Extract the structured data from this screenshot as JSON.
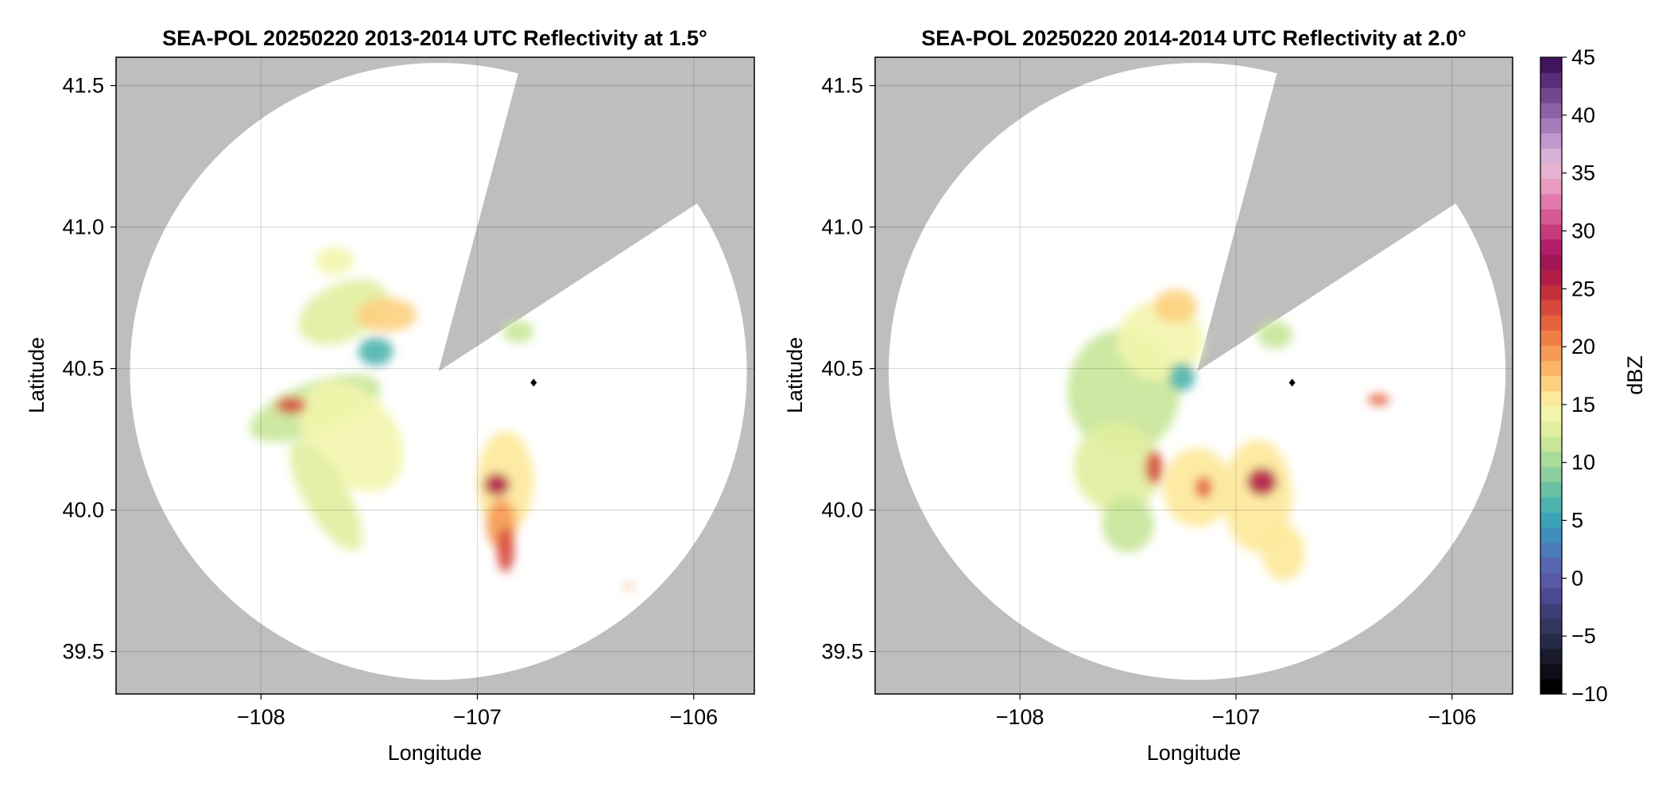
{
  "chart_data": [
    {
      "type": "heatmap",
      "title": "SEA-POL 20250220 2013-2014 UTC Reflectivity at 1.5°",
      "xlabel": "Longitude",
      "ylabel": "Latitude",
      "xlim": [
        -108.67,
        -105.72
      ],
      "ylim": [
        39.35,
        41.6
      ],
      "xticks": [
        -108,
        -107,
        -106
      ],
      "xtick_labels": [
        "−108",
        "−107",
        "−106"
      ],
      "yticks": [
        39.5,
        40.0,
        40.5,
        41.0,
        41.5
      ],
      "ytick_labels": [
        "39.5",
        "40.0",
        "40.5",
        "41.0",
        "41.5"
      ],
      "grid": true,
      "radar_center": [
        -107.18,
        40.49
      ],
      "radar_range_deg_lat": 1.09,
      "blocked_sector_azimuth_deg": [
        15,
        57
      ],
      "marker": {
        "lon": -106.74,
        "lat": 40.45,
        "symbol": "diamond"
      },
      "reflectivity_cells": [
        {
          "lon": -107.75,
          "lat": 40.36,
          "rlon": 0.32,
          "rlat": 0.09,
          "rot": -20,
          "dbz": 12
        },
        {
          "lon": -107.58,
          "lat": 40.26,
          "rlon": 0.2,
          "rlat": 0.22,
          "rot": -40,
          "dbz": 14
        },
        {
          "lon": -107.7,
          "lat": 40.05,
          "rlon": 0.1,
          "rlat": 0.22,
          "rot": -30,
          "dbz": 13
        },
        {
          "lon": -107.86,
          "lat": 40.37,
          "rlon": 0.07,
          "rlat": 0.03,
          "rot": 0,
          "dbz": 23
        },
        {
          "lon": -107.62,
          "lat": 40.7,
          "rlon": 0.22,
          "rlat": 0.1,
          "rot": -25,
          "dbz": 13
        },
        {
          "lon": -107.42,
          "lat": 40.69,
          "rlon": 0.14,
          "rlat": 0.06,
          "rot": 0,
          "dbz": 17
        },
        {
          "lon": -107.47,
          "lat": 40.56,
          "rlon": 0.08,
          "rlat": 0.05,
          "rot": 0,
          "dbz": 7
        },
        {
          "lon": -107.66,
          "lat": 40.88,
          "rlon": 0.09,
          "rlat": 0.05,
          "rot": 0,
          "dbz": 14
        },
        {
          "lon": -106.87,
          "lat": 40.1,
          "rlon": 0.13,
          "rlat": 0.18,
          "rot": 0,
          "dbz": 16
        },
        {
          "lon": -106.91,
          "lat": 40.09,
          "rlon": 0.06,
          "rlat": 0.04,
          "rot": 0,
          "dbz": 26
        },
        {
          "lon": -106.89,
          "lat": 39.95,
          "rlon": 0.07,
          "rlat": 0.09,
          "rot": 0,
          "dbz": 20
        },
        {
          "lon": -106.87,
          "lat": 39.86,
          "rlon": 0.04,
          "rlat": 0.08,
          "rot": 0,
          "dbz": 24
        },
        {
          "lon": -106.81,
          "lat": 40.63,
          "rlon": 0.07,
          "rlat": 0.04,
          "rot": 0,
          "dbz": 12
        },
        {
          "lon": -106.3,
          "lat": 39.73,
          "rlon": 0.02,
          "rlat": 0.01,
          "rot": 0,
          "dbz": 20
        }
      ]
    },
    {
      "type": "heatmap",
      "title": "SEA-POL 20250220 2014-2014 UTC Reflectivity at 2.0°",
      "xlabel": "Longitude",
      "ylabel": "Latitude",
      "xlim": [
        -108.67,
        -105.72
      ],
      "ylim": [
        39.35,
        41.6
      ],
      "xticks": [
        -108,
        -107,
        -106
      ],
      "xtick_labels": [
        "−108",
        "−107",
        "−106"
      ],
      "yticks": [
        39.5,
        40.0,
        40.5,
        41.0,
        41.5
      ],
      "ytick_labels": [
        "39.5",
        "40.0",
        "40.5",
        "41.0",
        "41.5"
      ],
      "grid": true,
      "radar_center": [
        -107.18,
        40.49
      ],
      "radar_range_deg_lat": 1.09,
      "blocked_sector_azimuth_deg": [
        15,
        57
      ],
      "marker": {
        "lon": -106.74,
        "lat": 40.45,
        "symbol": "diamond"
      },
      "reflectivity_cells": [
        {
          "lon": -107.52,
          "lat": 40.42,
          "rlon": 0.26,
          "rlat": 0.22,
          "rot": 0,
          "dbz": 12
        },
        {
          "lon": -107.35,
          "lat": 40.6,
          "rlon": 0.2,
          "rlat": 0.14,
          "rot": 0,
          "dbz": 14
        },
        {
          "lon": -107.55,
          "lat": 40.15,
          "rlon": 0.2,
          "rlat": 0.16,
          "rot": -20,
          "dbz": 13
        },
        {
          "lon": -107.5,
          "lat": 39.95,
          "rlon": 0.12,
          "rlat": 0.1,
          "rot": 0,
          "dbz": 12
        },
        {
          "lon": -107.18,
          "lat": 40.08,
          "rlon": 0.16,
          "rlat": 0.14,
          "rot": 0,
          "dbz": 15
        },
        {
          "lon": -106.9,
          "lat": 40.05,
          "rlon": 0.16,
          "rlat": 0.2,
          "rot": 0,
          "dbz": 16
        },
        {
          "lon": -106.88,
          "lat": 40.1,
          "rlon": 0.07,
          "rlat": 0.05,
          "rot": 0,
          "dbz": 26
        },
        {
          "lon": -107.38,
          "lat": 40.15,
          "rlon": 0.04,
          "rlat": 0.06,
          "rot": 0,
          "dbz": 24
        },
        {
          "lon": -107.15,
          "lat": 40.08,
          "rlon": 0.04,
          "rlat": 0.04,
          "rot": 0,
          "dbz": 22
        },
        {
          "lon": -106.78,
          "lat": 39.85,
          "rlon": 0.1,
          "rlat": 0.1,
          "rot": 0,
          "dbz": 16
        },
        {
          "lon": -107.28,
          "lat": 40.72,
          "rlon": 0.1,
          "rlat": 0.06,
          "rot": 0,
          "dbz": 17
        },
        {
          "lon": -107.25,
          "lat": 40.47,
          "rlon": 0.06,
          "rlat": 0.05,
          "rot": 0,
          "dbz": 6
        },
        {
          "lon": -106.82,
          "lat": 40.62,
          "rlon": 0.08,
          "rlat": 0.05,
          "rot": 0,
          "dbz": 11
        },
        {
          "lon": -106.34,
          "lat": 40.39,
          "rlon": 0.05,
          "rlat": 0.02,
          "rot": 0,
          "dbz": 22
        }
      ]
    }
  ],
  "colorbar": {
    "label": "dBZ",
    "range": [
      -10,
      45
    ],
    "ticks": [
      45,
      40,
      35,
      30,
      25,
      20,
      15,
      10,
      5,
      0,
      -5,
      -10
    ],
    "tick_labels": [
      "45",
      "40",
      "35",
      "30",
      "25",
      "20",
      "15",
      "10",
      "5",
      "0",
      "−5",
      "−10"
    ],
    "colors": [
      "#000000",
      "#0d0d16",
      "#1a1a2d",
      "#262a47",
      "#32365f",
      "#3e3f79",
      "#4a4991",
      "#5858a6",
      "#5865b0",
      "#4d7ab8",
      "#3f8fbc",
      "#3aa3b8",
      "#4cb3ad",
      "#6ac1a4",
      "#8bcf9e",
      "#aadb99",
      "#c7e698",
      "#e1ee9e",
      "#f3f5ad",
      "#fde99a",
      "#fdd080",
      "#fbb568",
      "#f69a55",
      "#ef7e47",
      "#e4633f",
      "#d6493c",
      "#c5303d",
      "#b11d47",
      "#a01654",
      "#b41e68",
      "#c73a7e",
      "#d75a95",
      "#e27bac",
      "#e99bc0",
      "#e8b2d2",
      "#d9b0d8",
      "#c298cc",
      "#a77cba",
      "#8c61a6",
      "#724691",
      "#582d79",
      "#401560"
    ]
  },
  "colors": {
    "masked": "#bebebe",
    "coverage": "#ffffff",
    "grid": "#d3d3d3",
    "marker": "#000000"
  }
}
